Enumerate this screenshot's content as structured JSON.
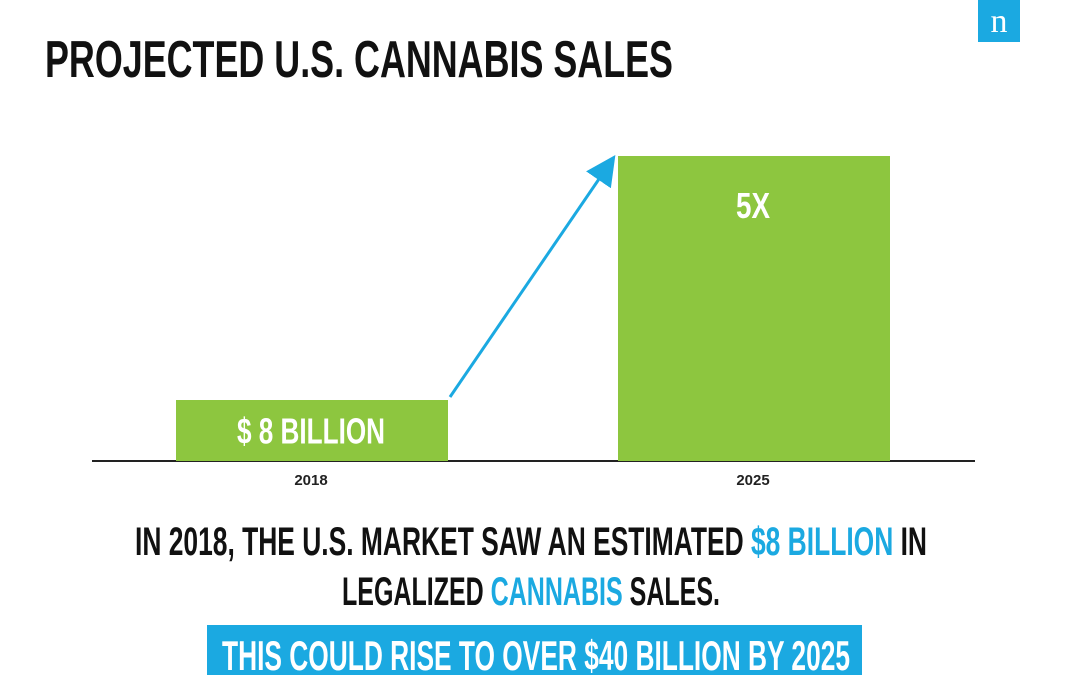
{
  "logo": "n",
  "chart_data": {
    "type": "bar",
    "title": "PROJECTED U.S. CANNABIS SALES",
    "categories": [
      "2018",
      "2025"
    ],
    "values": [
      8,
      40
    ],
    "value_labels": [
      "$ 8 BILLION",
      null
    ],
    "annotation": "5X",
    "color": "#8dc63f",
    "ylim": [
      0,
      40
    ]
  },
  "summary": {
    "lines": [
      [
        {
          "text": "IN 2018, THE U.S. MARKET SAW AN ESTIMATED "
        },
        {
          "text": "$8 BILLION",
          "highlight": true
        },
        {
          "text": " IN"
        }
      ],
      [
        {
          "text": "LEGALIZED "
        },
        {
          "text": "CANNABIS",
          "highlight": true
        },
        {
          "text": " SALES."
        }
      ]
    ],
    "banner": "THIS COULD RISE TO OVER $40 BILLION BY 2025"
  }
}
